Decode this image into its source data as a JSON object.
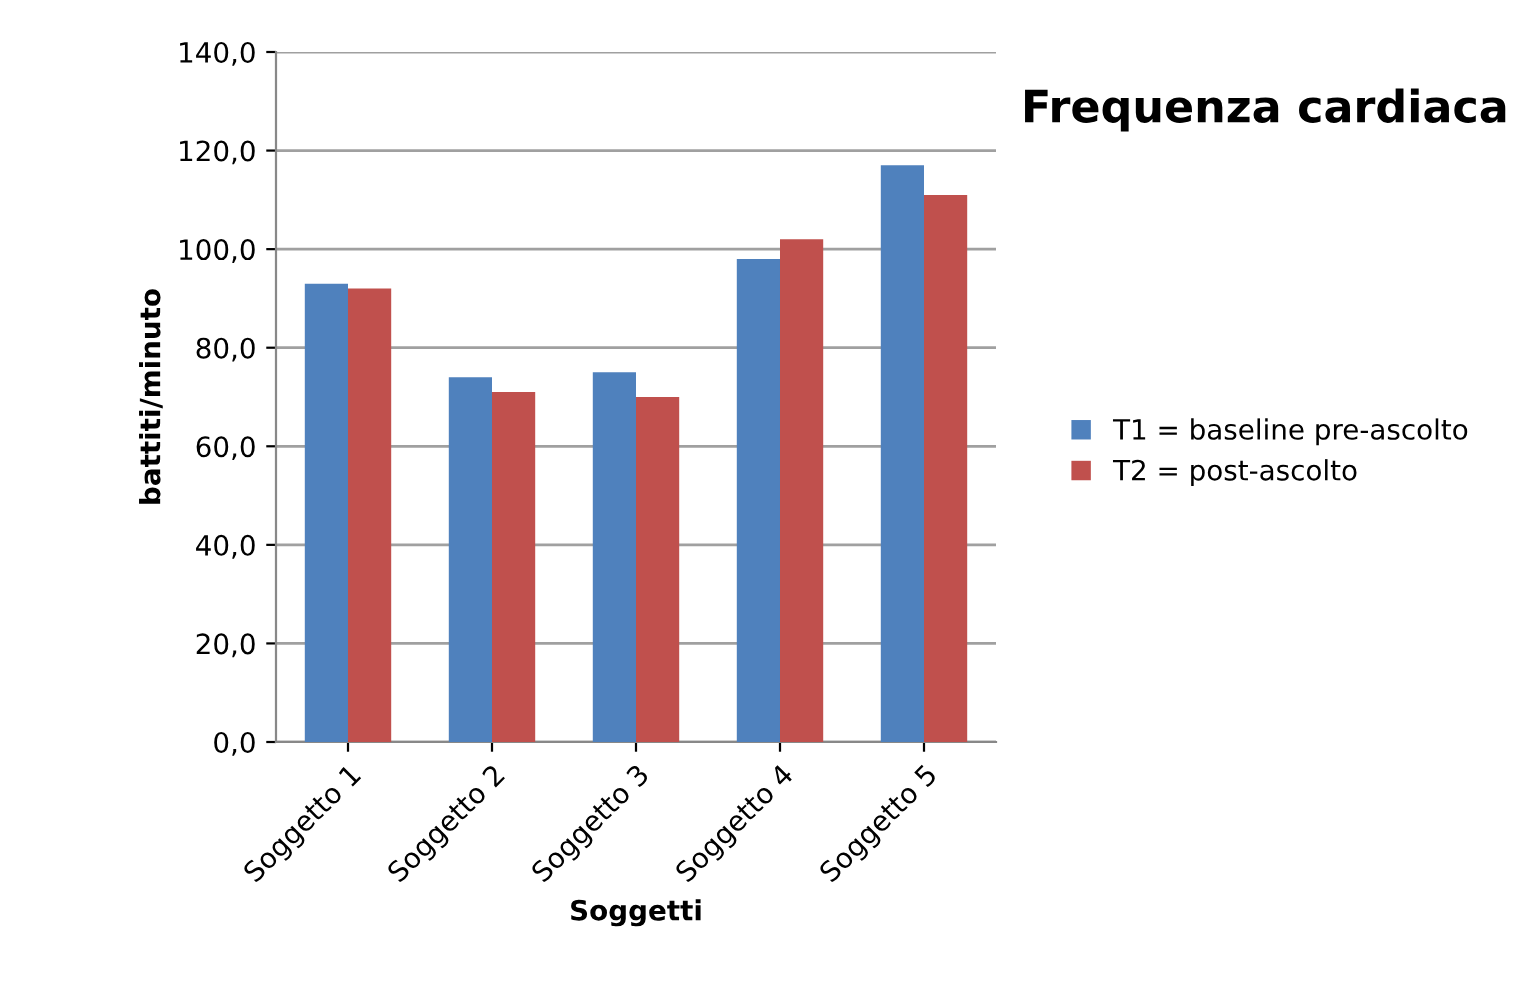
{
  "chart_data": {
    "type": "bar",
    "title": "Frequenza cardiaca",
    "xlabel": "Soggetti",
    "ylabel": "battiti/minuto",
    "categories": [
      "Soggetto 1",
      "Soggetto 2",
      "Soggetto 3",
      "Soggetto 4",
      "Soggetto 5"
    ],
    "series": [
      {
        "name": "T1 = baseline pre-ascolto",
        "color": "#4f81bd",
        "values": [
          93,
          74,
          75,
          98,
          117
        ]
      },
      {
        "name": "T2 = post-ascolto",
        "color": "#c0504d",
        "values": [
          92,
          71,
          70,
          102,
          111
        ]
      }
    ],
    "ylim": [
      0,
      140
    ],
    "yticks": [
      {
        "value": 0,
        "label": "0,0"
      },
      {
        "value": 20,
        "label": "20,0"
      },
      {
        "value": 40,
        "label": "40,0"
      },
      {
        "value": 60,
        "label": "60,0"
      },
      {
        "value": 80,
        "label": "80,0"
      },
      {
        "value": 100,
        "label": "100,0"
      },
      {
        "value": 120,
        "label": "120,0"
      },
      {
        "value": 140,
        "label": "140,0"
      }
    ],
    "grid": "y",
    "legend": "right"
  }
}
